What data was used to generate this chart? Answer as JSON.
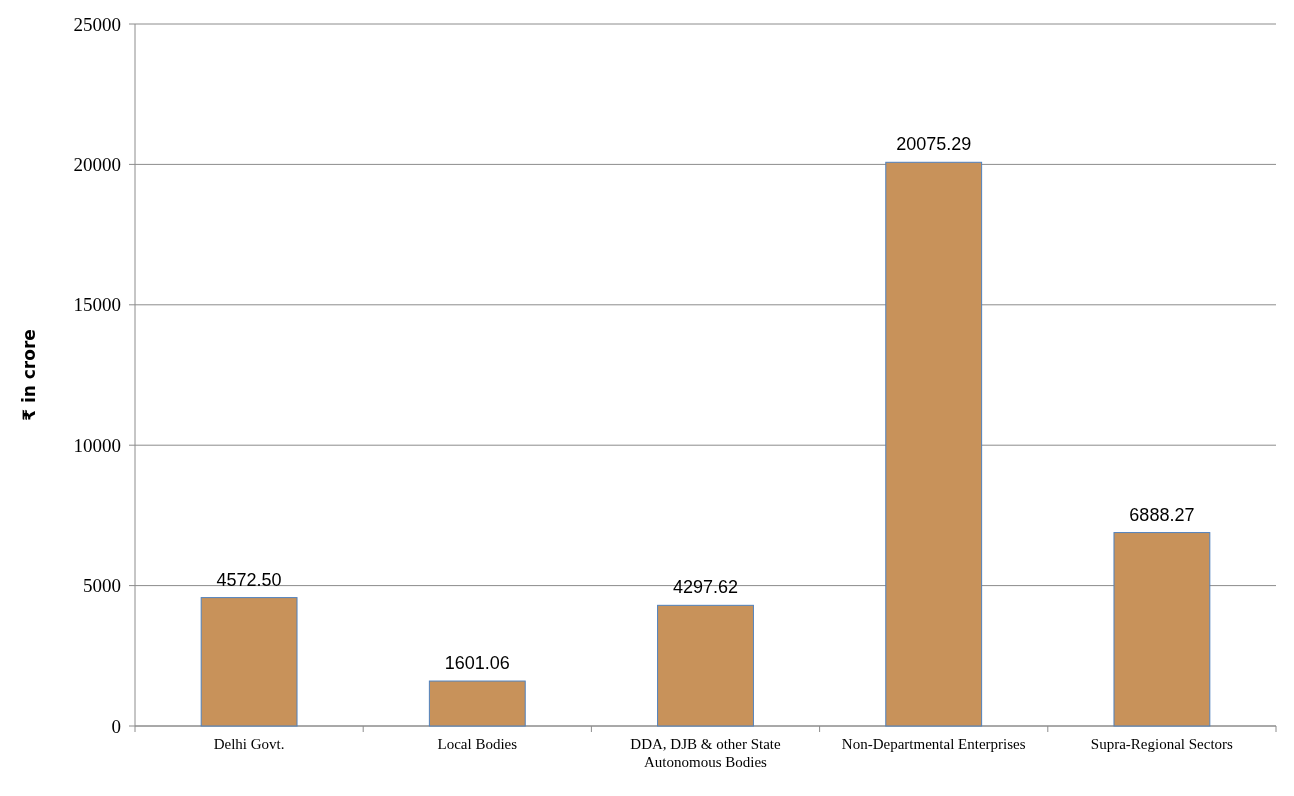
{
  "chart_data": {
    "type": "bar",
    "ylabel": "₹ in crore",
    "categories": [
      "Delhi Govt.",
      "Local Bodies",
      "DDA, DJB & other State Autonomous Bodies",
      "Non-Departmental Enterprises",
      "Supra-Regional Sectors"
    ],
    "values": [
      4572.5,
      1601.06,
      4297.62,
      20075.29,
      6888.27
    ],
    "value_labels": [
      "4572.50",
      "1601.06",
      "4297.62",
      "20075.29",
      "6888.27"
    ],
    "color": "#c8925a",
    "ylim": [
      0,
      25000
    ],
    "yticks": [
      0,
      5000,
      10000,
      15000,
      20000,
      25000
    ],
    "grid": "y"
  }
}
